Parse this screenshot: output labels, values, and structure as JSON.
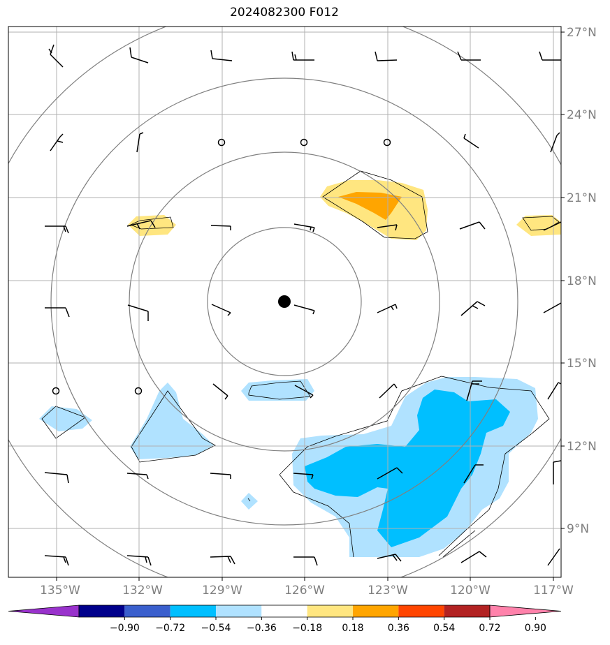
{
  "title": "2024082300 F012",
  "lat_labels": [
    "27°N",
    "24°N",
    "21°N",
    "18°N",
    "15°N",
    "12°N",
    "9°N"
  ],
  "lon_labels": [
    "135°W",
    "132°W",
    "129°W",
    "126°W",
    "123°W",
    "120°W",
    "117°W"
  ],
  "colorbar": {
    "ticks": [
      "−0.90",
      "−0.72",
      "−0.54",
      "−0.36",
      "−0.18",
      "0.18",
      "0.36",
      "0.54",
      "0.72",
      "0.90"
    ],
    "colors": [
      "#9932cc",
      "#00008b",
      "#3a5fcd",
      "#00bfff",
      "#b0e2ff",
      "#ffffff",
      "#ffe680",
      "#ffa500",
      "#ff4500",
      "#b22222",
      "#ff82ab"
    ]
  },
  "storm_center": {
    "lon": -126.8,
    "lat": 17.2
  },
  "colors": {
    "ring": "#808080",
    "grid": "#b0b0b0",
    "positive": "#ffe680",
    "strong_positive": "#ffa500",
    "negative": "#b0e2ff",
    "strong_negative": "#00bfff"
  }
}
